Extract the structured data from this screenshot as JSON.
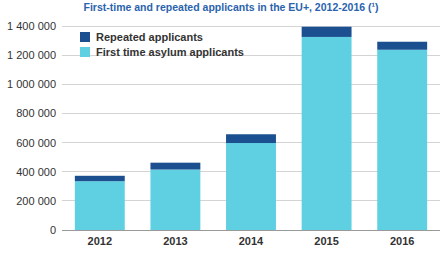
{
  "chart_data": {
    "type": "bar",
    "stacked": true,
    "title": "First-time and repeated applicants in the EU+, 2012-2016 (¹)",
    "categories": [
      "2012",
      "2013",
      "2014",
      "2015",
      "2016"
    ],
    "series": [
      {
        "name": "First time asylum applicants",
        "color": "#5fcfe2",
        "values": [
          335000,
          415000,
          597000,
          1325000,
          1237000
        ]
      },
      {
        "name": "Repeated applicants",
        "color": "#1b4f8f",
        "values": [
          37000,
          47000,
          60000,
          70000,
          55000
        ]
      }
    ],
    "ylim": [
      0,
      1400000
    ],
    "yticks": [
      {
        "value": 0,
        "label": "0"
      },
      {
        "value": 200000,
        "label": "200 000"
      },
      {
        "value": 400000,
        "label": "400 000"
      },
      {
        "value": 600000,
        "label": "600 000"
      },
      {
        "value": 800000,
        "label": "800 000"
      },
      {
        "value": 1000000,
        "label": "1 000 000"
      },
      {
        "value": 1200000,
        "label": "1 200 000"
      },
      {
        "value": 1400000,
        "label": "1 400 000"
      }
    ],
    "grid": true,
    "legend": "upper-left"
  }
}
